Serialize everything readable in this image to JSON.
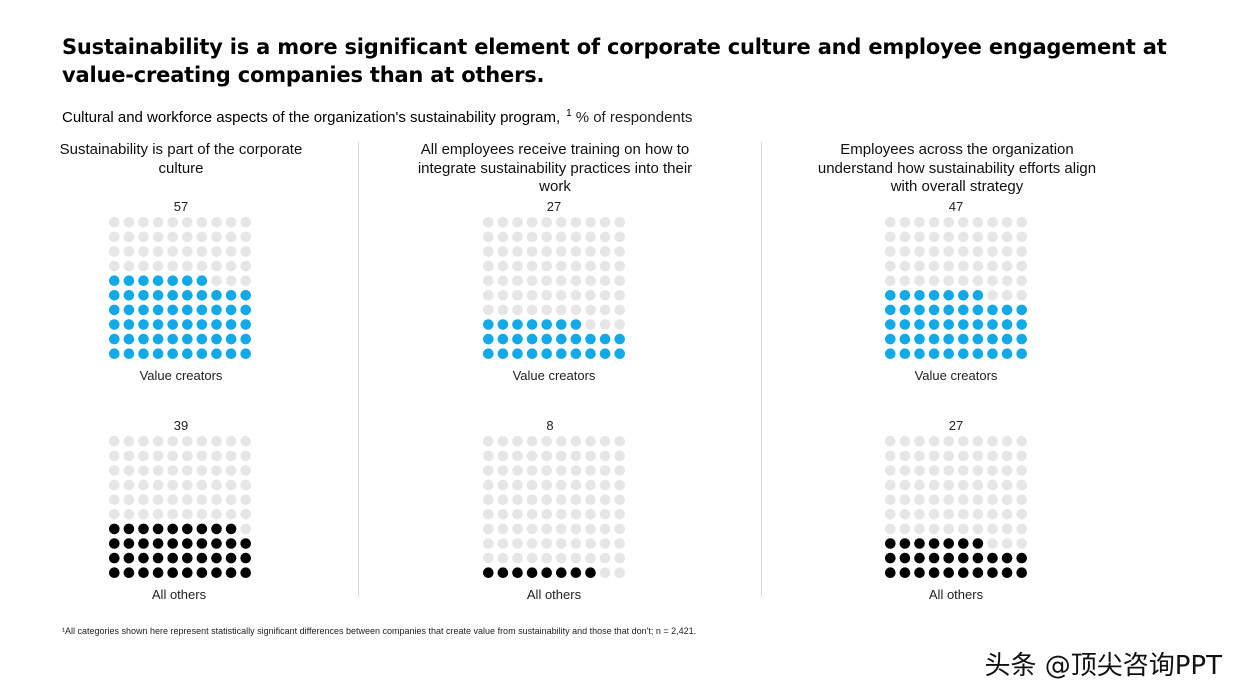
{
  "title": "Sustainability is a more significant element of corporate culture and employee engagement at value-creating companies than at others.",
  "subtitle": {
    "main": "Cultural and workforce aspects of the organization's sustainability program,",
    "footnote_ref": "1",
    "unit": "% of respondents"
  },
  "footnote": "¹All categories shown here represent statistically significant differences between companies that create value from sustainability and those that don't; n = 2,421.",
  "watermark": "头条 @顶尖咨询PPT",
  "colors": {
    "value_creators": "#12a9e8",
    "all_others": "#000000",
    "empty_dot": "#e6e6e6"
  },
  "chart_data": [
    {
      "type": "waffle",
      "title": "Sustainability is part of the corporate culture",
      "grid": "10x10",
      "series": [
        {
          "name": "Value creators",
          "value": 57
        },
        {
          "name": "All others",
          "value": 39
        }
      ]
    },
    {
      "type": "waffle",
      "title": "All employees receive training on how to integrate sustainability practices into their work",
      "grid": "10x10",
      "series": [
        {
          "name": "Value creators",
          "value": 27
        },
        {
          "name": "All others",
          "value": 8
        }
      ]
    },
    {
      "type": "waffle",
      "title": "Employees across the organization understand how sustainability efforts align with overall strategy",
      "grid": "10x10",
      "series": [
        {
          "name": "Value creators",
          "value": 47
        },
        {
          "name": "All others",
          "value": 27
        }
      ]
    }
  ]
}
